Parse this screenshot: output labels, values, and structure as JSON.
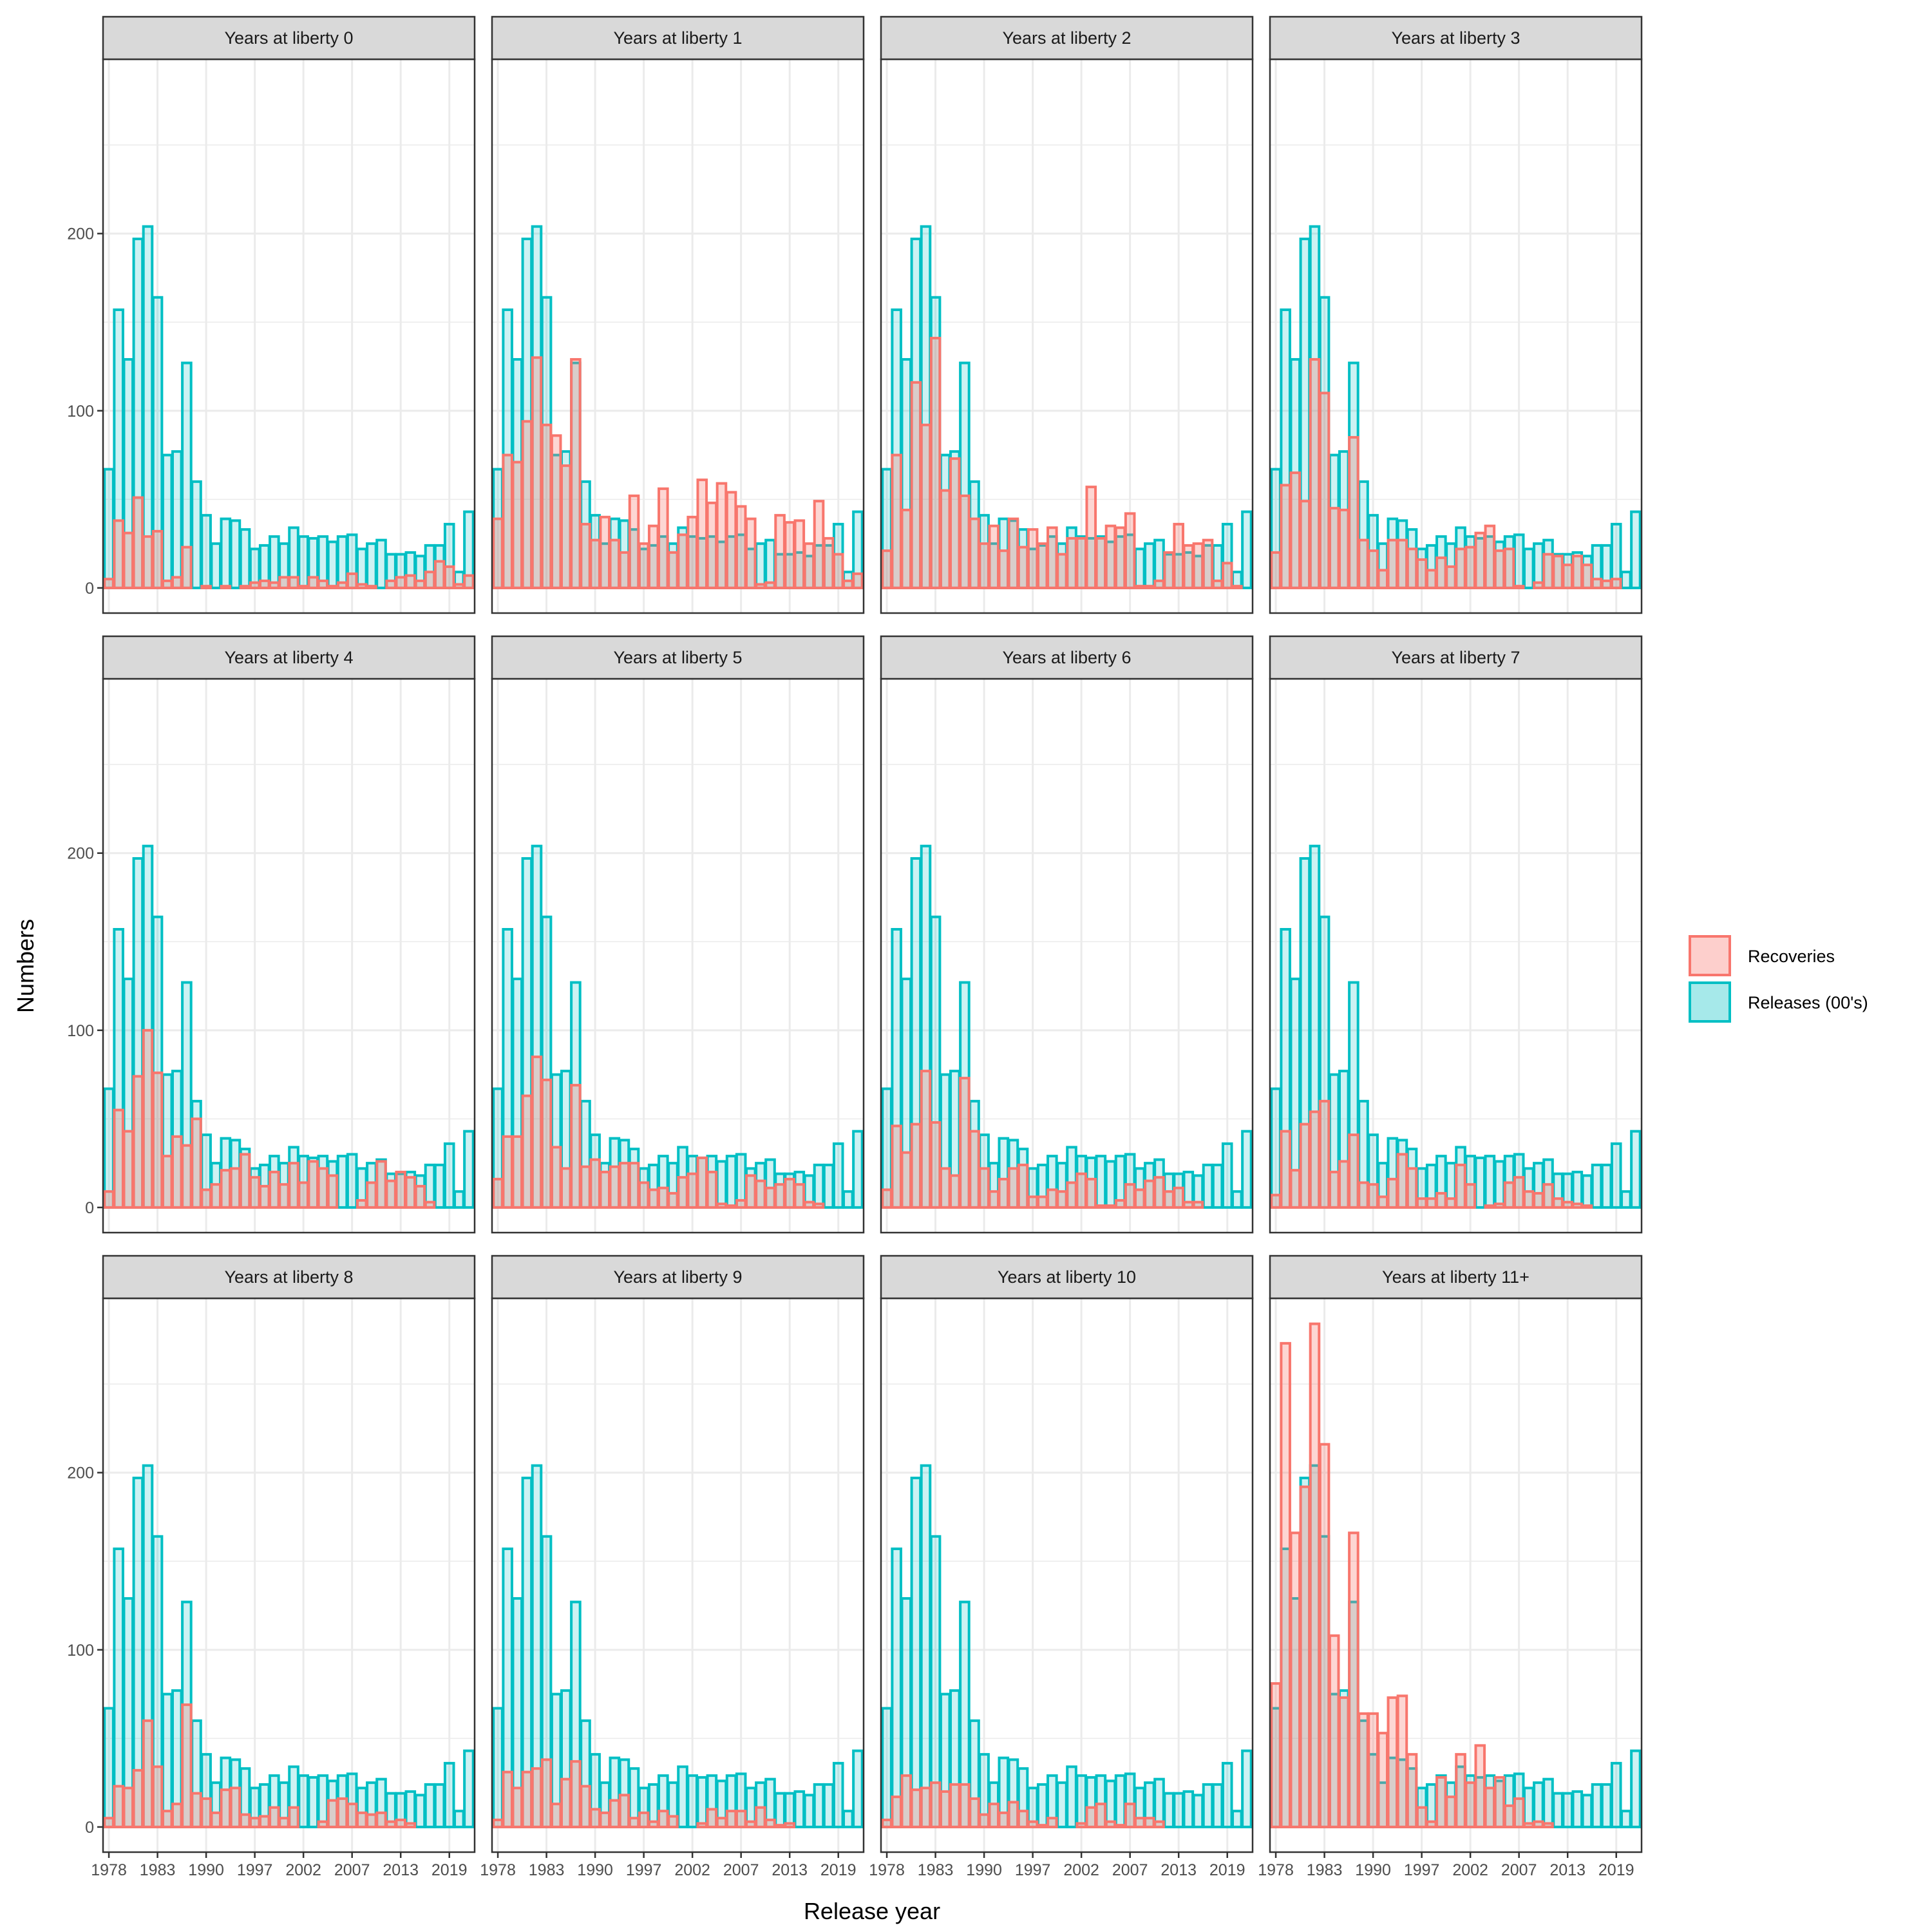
{
  "chart_data": {
    "type": "bar",
    "xlabel": "Release year",
    "ylabel": "Numbers",
    "ylim": [
      -14.2,
      298.4
    ],
    "yticks": [
      0,
      100,
      200
    ],
    "ytick_labels": [
      "0",
      "100",
      "200"
    ],
    "categories": [
      1978,
      1979,
      1980,
      1981,
      1982,
      1983,
      1984,
      1985,
      1986,
      1988,
      1990,
      1991,
      1992,
      1993,
      1995,
      1997,
      1998,
      1999,
      2000,
      2001,
      2002,
      2003,
      2004,
      2005,
      2006,
      2007,
      2008,
      2009,
      2010,
      2012,
      2013,
      2014,
      2015,
      2016,
      2018,
      2019,
      2020,
      2021
    ],
    "xtick_labels": [
      "1978",
      "1983",
      "1990",
      "1997",
      "2002",
      "2007",
      "2013",
      "2019"
    ],
    "xtick_positions": [
      1,
      6,
      11,
      16,
      21,
      26,
      31,
      36
    ],
    "legend": {
      "position": "right",
      "entries": [
        {
          "label": "Recoveries",
          "color": "#F8766D"
        },
        {
          "label": "Releases (00's)",
          "color": "#00BFC4"
        }
      ]
    },
    "releases": [
      67,
      157,
      129,
      197,
      204,
      164,
      75,
      77,
      127,
      60,
      41,
      25,
      39,
      38,
      33,
      22,
      24,
      29,
      25,
      34,
      29,
      28,
      29,
      26,
      29,
      30,
      22,
      25,
      27,
      19,
      19,
      20,
      18,
      24,
      24,
      36,
      9,
      43
    ],
    "panels": [
      {
        "title": "Years at liberty 0",
        "recoveries": [
          5,
          38,
          31,
          51,
          29,
          32,
          4,
          6,
          23,
          0,
          1,
          0,
          1,
          0,
          1,
          3,
          4,
          3,
          6,
          6,
          1,
          6,
          4,
          1,
          3,
          8,
          2,
          1,
          0,
          4,
          6,
          7,
          4,
          9,
          15,
          12,
          2,
          7
        ]
      },
      {
        "title": "Years at liberty 1",
        "recoveries": [
          39,
          75,
          71,
          94,
          130,
          92,
          86,
          69,
          129,
          36,
          27,
          40,
          27,
          20,
          52,
          25,
          35,
          56,
          20,
          30,
          40,
          61,
          48,
          59,
          54,
          46,
          39,
          2,
          3,
          41,
          37,
          38,
          25,
          49,
          28,
          19,
          4,
          8
        ]
      },
      {
        "title": "Years at liberty 2",
        "recoveries": [
          21,
          75,
          44,
          116,
          92,
          141,
          55,
          73,
          52,
          39,
          25,
          35,
          21,
          39,
          23,
          33,
          25,
          34,
          19,
          28,
          28,
          57,
          28,
          35,
          34,
          42,
          1,
          1,
          4,
          20,
          36,
          24,
          25,
          27,
          4,
          14,
          1,
          0
        ]
      },
      {
        "title": "Years at liberty 3",
        "recoveries": [
          20,
          58,
          65,
          49,
          129,
          110,
          45,
          44,
          85,
          27,
          21,
          10,
          27,
          27,
          22,
          16,
          10,
          17,
          12,
          22,
          23,
          31,
          35,
          21,
          22,
          1,
          0,
          3,
          19,
          18,
          13,
          18,
          13,
          5,
          4,
          5,
          0,
          0
        ]
      },
      {
        "title": "Years at liberty 4",
        "recoveries": [
          9,
          55,
          43,
          74,
          100,
          76,
          29,
          40,
          35,
          50,
          10,
          13,
          21,
          22,
          30,
          17,
          12,
          20,
          13,
          25,
          14,
          26,
          22,
          18,
          0,
          0,
          4,
          14,
          26,
          15,
          20,
          17,
          12,
          3,
          0,
          0,
          0,
          0
        ]
      },
      {
        "title": "Years at liberty 5",
        "recoveries": [
          16,
          40,
          40,
          63,
          85,
          72,
          34,
          22,
          69,
          23,
          27,
          20,
          23,
          25,
          25,
          14,
          10,
          11,
          8,
          17,
          19,
          28,
          20,
          2,
          1,
          4,
          18,
          15,
          11,
          13,
          16,
          13,
          3,
          2,
          0,
          0,
          0,
          0
        ]
      },
      {
        "title": "Years at liberty 6",
        "recoveries": [
          10,
          46,
          31,
          47,
          77,
          48,
          22,
          18,
          73,
          43,
          22,
          9,
          16,
          22,
          24,
          6,
          6,
          10,
          9,
          14,
          19,
          16,
          1,
          1,
          4,
          13,
          10,
          15,
          17,
          9,
          11,
          3,
          3,
          0,
          0,
          0,
          0,
          0
        ]
      },
      {
        "title": "Years at liberty 7",
        "recoveries": [
          7,
          43,
          21,
          47,
          54,
          60,
          20,
          26,
          41,
          14,
          13,
          6,
          16,
          30,
          22,
          5,
          5,
          8,
          5,
          24,
          13,
          0,
          1,
          2,
          14,
          17,
          9,
          8,
          13,
          5,
          3,
          2,
          1,
          0,
          0,
          0,
          0,
          0
        ]
      },
      {
        "title": "Years at liberty 8",
        "recoveries": [
          5,
          23,
          22,
          32,
          60,
          34,
          9,
          13,
          69,
          19,
          16,
          8,
          21,
          22,
          7,
          5,
          6,
          11,
          5,
          11,
          0,
          0,
          3,
          15,
          16,
          13,
          8,
          7,
          8,
          3,
          4,
          2,
          0,
          0,
          0,
          0,
          0,
          0
        ]
      },
      {
        "title": "Years at liberty 9",
        "recoveries": [
          4,
          31,
          22,
          31,
          33,
          38,
          13,
          27,
          37,
          23,
          10,
          8,
          15,
          18,
          5,
          8,
          3,
          9,
          6,
          0,
          0,
          2,
          10,
          5,
          9,
          9,
          3,
          11,
          4,
          1,
          2,
          0,
          0,
          0,
          0,
          0,
          0,
          0
        ]
      },
      {
        "title": "Years at liberty 10",
        "recoveries": [
          4,
          17,
          29,
          21,
          22,
          25,
          20,
          24,
          24,
          16,
          7,
          13,
          8,
          14,
          9,
          3,
          1,
          5,
          0,
          0,
          2,
          11,
          13,
          3,
          1,
          13,
          5,
          5,
          3,
          0,
          0,
          0,
          0,
          0,
          0,
          0,
          0,
          0
        ]
      },
      {
        "title": "Years at liberty 11+",
        "recoveries": [
          81,
          273,
          166,
          192,
          284,
          216,
          108,
          73,
          166,
          64,
          64,
          53,
          73,
          74,
          41,
          11,
          3,
          28,
          17,
          41,
          25,
          46,
          22,
          28,
          12,
          16,
          2,
          3,
          2,
          0,
          0,
          0,
          0,
          0,
          0,
          0,
          0,
          0
        ]
      }
    ],
    "colors": {
      "recoveries_stroke": "#F8766D",
      "recoveries_fill": "#F8766D",
      "releases_stroke": "#00BFC4",
      "releases_fill": "#00BFC4",
      "strip_fill": "#D9D9D9",
      "grid": "#EBEBEB",
      "panel_border": "#333333"
    }
  }
}
